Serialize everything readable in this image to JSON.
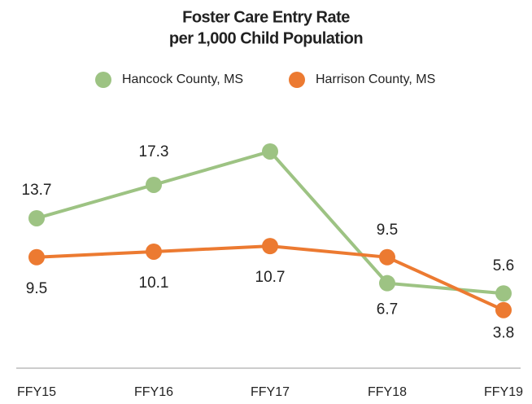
{
  "chart_data": {
    "type": "line",
    "title": [
      "Foster Care Entry Rate",
      "per 1,000 Child Population"
    ],
    "categories": [
      "FFY15",
      "FFY16",
      "FFY17",
      "FFY18",
      "FFY19"
    ],
    "series": [
      {
        "name": "Hancock County, MS",
        "color": "#9dc383",
        "values": [
          13.7,
          17.3,
          20.9,
          6.7,
          5.6
        ]
      },
      {
        "name": "Harrison County, MS",
        "color": "#ec7a31",
        "values": [
          9.5,
          10.1,
          10.7,
          9.5,
          3.8
        ]
      }
    ],
    "legend": "top"
  }
}
